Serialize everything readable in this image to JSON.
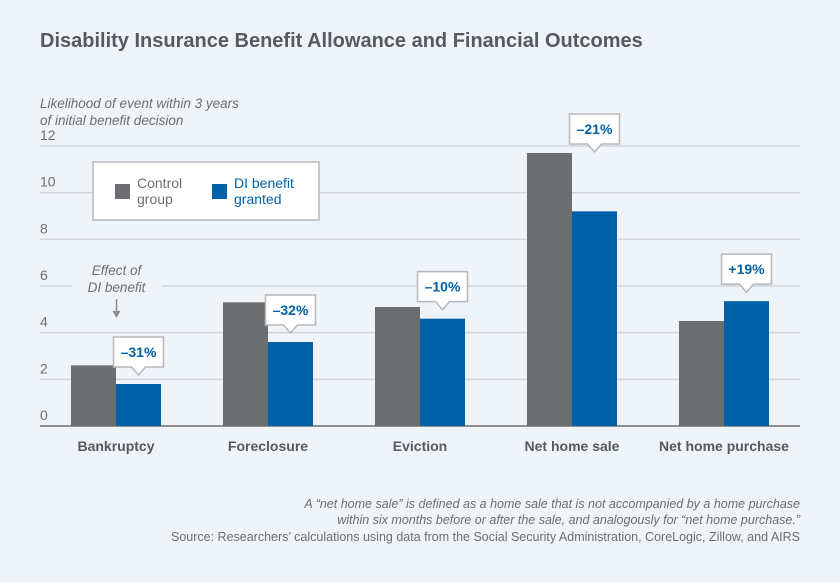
{
  "title": "Disability Insurance Benefit Allowance and Financial Outcomes",
  "chart_data": {
    "type": "bar",
    "ylabel": "Likelihood of event within 3 years of initial benefit decision",
    "ylabel_lines": [
      "Likelihood of event within 3 years",
      "of initial benefit decision"
    ],
    "ylim": [
      0,
      12
    ],
    "yticks": [
      0,
      2,
      4,
      6,
      8,
      10,
      12
    ],
    "grid": true,
    "legend_placement": "top-left",
    "categories": [
      "Bankruptcy",
      "Foreclosure",
      "Eviction",
      "Net home sale",
      "Net home purchase"
    ],
    "series": [
      {
        "name": "Control group",
        "color": "#6d6e71",
        "values": [
          2.6,
          5.3,
          5.1,
          11.7,
          4.5
        ]
      },
      {
        "name": "DI benefit granted",
        "color": "#0061a8",
        "values": [
          1.8,
          3.6,
          4.6,
          9.2,
          5.35
        ]
      }
    ],
    "effect_labels": [
      "–31%",
      "–32%",
      "–10%",
      "–21%",
      "+19%"
    ],
    "annotation": [
      "Effect of",
      "DI benefit"
    ]
  },
  "notes": {
    "line1": "A “net home sale” is defined as a home sale that is not accompanied by a home purchase",
    "line2": "within six months before or after the sale, and analogously for “net home purchase.”",
    "source": "Source: Researchers’ calculations using data from the Social Security Administration, CoreLogic, Zillow, and AIRS"
  }
}
